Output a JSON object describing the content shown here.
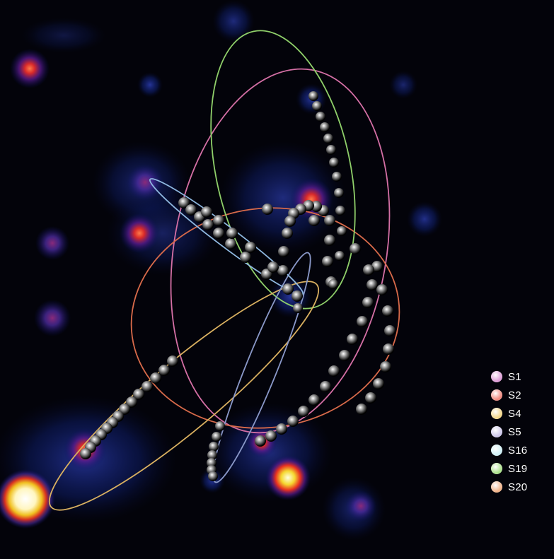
{
  "legend": [
    {
      "label": "S1",
      "color": "#d98fd0"
    },
    {
      "label": "S2",
      "color": "#f07a6e"
    },
    {
      "label": "S4",
      "color": "#f2d27a"
    },
    {
      "label": "S5",
      "color": "#c8c0e8"
    },
    {
      "label": "S16",
      "color": "#c8eef5"
    },
    {
      "label": "S19",
      "color": "#9fdc7a"
    },
    {
      "label": "S20",
      "color": "#f0a878"
    }
  ],
  "colors": {
    "background": "#03030a",
    "orbit_S1": "#d46fa5",
    "orbit_S2": "#d86a4a",
    "orbit_S4": "#d9b060",
    "orbit_S5": "#8a98c8",
    "orbit_S16": "#8fb8e0",
    "orbit_S19": "#8fcf6a"
  }
}
